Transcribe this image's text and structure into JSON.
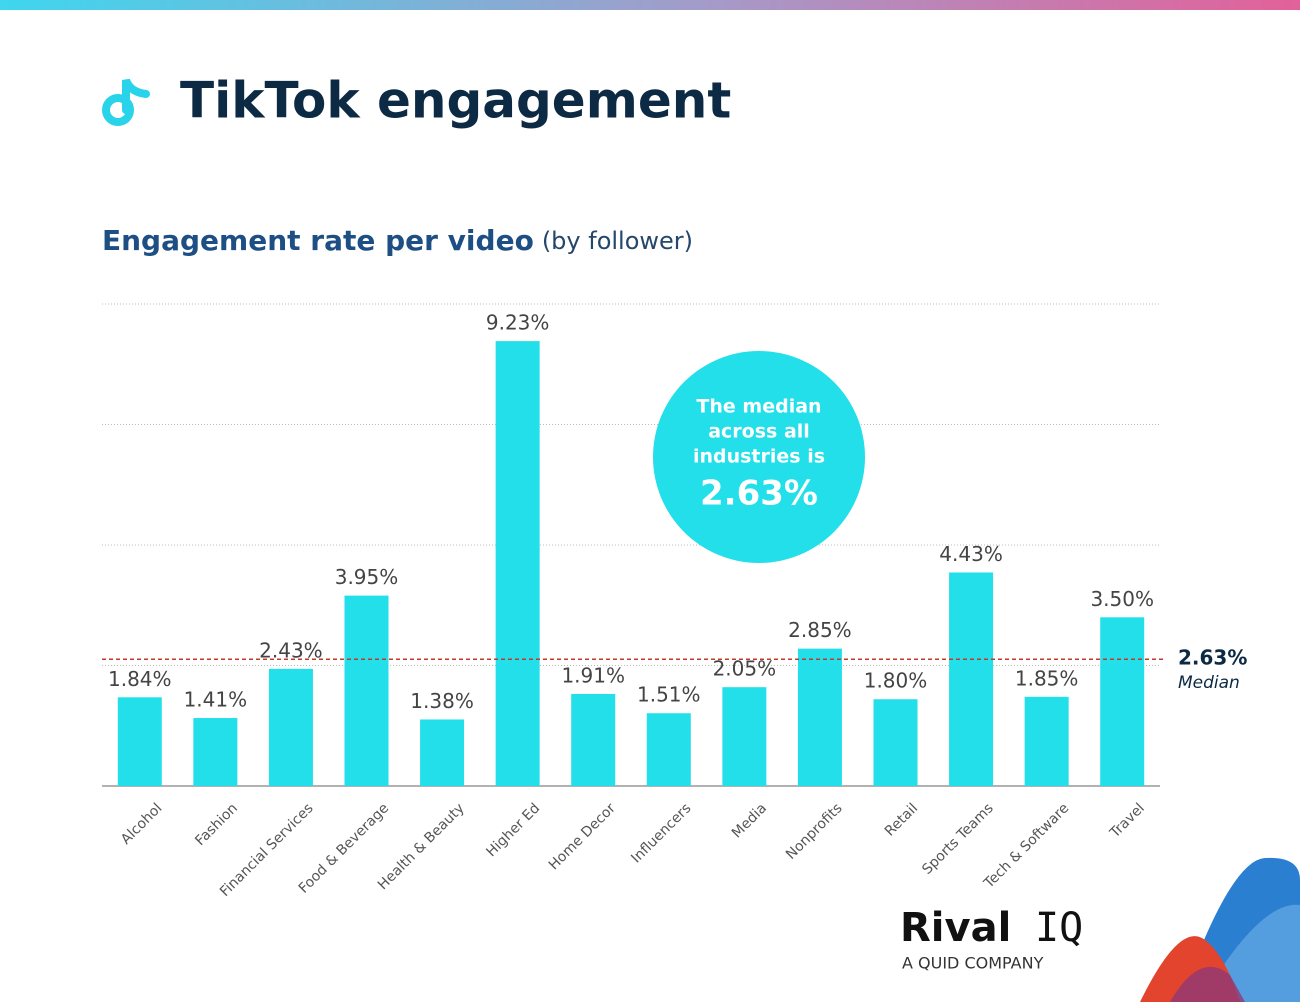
{
  "chart_data": {
    "type": "bar",
    "title": "TikTok engagement",
    "subtitle": "Engagement rate per video",
    "subtitle_note": "(by follower)",
    "categories": [
      "Alcohol",
      "Fashion",
      "Financial Services",
      "Food & Beverage",
      "Health & Beauty",
      "Higher Ed",
      "Home Decor",
      "Influencers",
      "Media",
      "Nonprofits",
      "Retail",
      "Sports Teams",
      "Tech & Software",
      "Travel"
    ],
    "values": [
      1.84,
      1.41,
      2.43,
      3.95,
      1.38,
      9.23,
      1.91,
      1.51,
      2.05,
      2.85,
      1.8,
      4.43,
      1.85,
      3.5
    ],
    "value_labels": [
      "1.84%",
      "1.41%",
      "2.43%",
      "3.95%",
      "1.38%",
      "9.23%",
      "1.91%",
      "1.51%",
      "2.05%",
      "2.85%",
      "1.80%",
      "4.43%",
      "1.85%",
      "3.50%"
    ],
    "color": "#22dfea",
    "ylim": [
      0,
      10
    ],
    "yticks": [
      0,
      2.5,
      5,
      7.5,
      10
    ],
    "grid": true,
    "median": {
      "value": 2.63,
      "label": "2.63%",
      "name": "Median",
      "color": "#c0392b"
    },
    "annotation": {
      "lines": [
        "The median",
        "across all",
        "industries is"
      ],
      "value_label": "2.63%"
    },
    "logo": {
      "name": "Rival",
      "mark": "IQ",
      "tagline": "A QUID COMPANY"
    }
  }
}
